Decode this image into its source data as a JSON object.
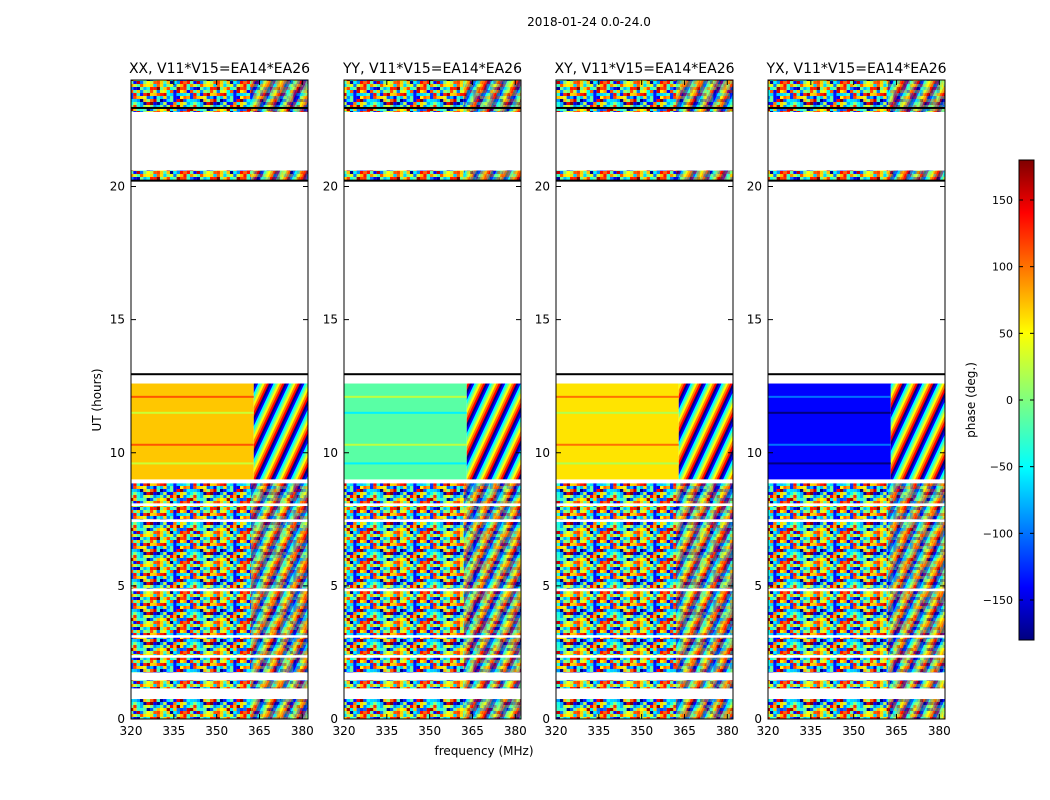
{
  "figure": {
    "suptitle": "2018-01-24 0.0-24.0",
    "shared_xlabel": "frequency (MHz)",
    "shared_ylabel": "UT (hours)"
  },
  "colorbar": {
    "label": "phase (deg.)",
    "range": [
      -180,
      180
    ],
    "ticks": [
      150,
      100,
      50,
      0,
      -50,
      -100,
      -150
    ],
    "tick_labels": [
      "150",
      "100",
      "50",
      "0",
      "−50",
      "−100",
      "−150"
    ],
    "colormap": [
      "#00007f",
      "#0000ff",
      "#00ffff",
      "#7fff7f",
      "#ffff00",
      "#ff7f00",
      "#ff0000",
      "#7f0000"
    ]
  },
  "chart_data": [
    {
      "type": "heatmap",
      "title": "XX, V11*V15=EA14*EA26",
      "xlabel": "",
      "ylabel": "UT (hours)",
      "xlim": [
        320,
        382
      ],
      "ylim": [
        0,
        24
      ],
      "x_ticks": [
        320,
        335,
        350,
        365,
        380
      ],
      "y_ticks": [
        0,
        5,
        10,
        15,
        20
      ],
      "z_label": "phase (deg.)",
      "coherent_block": {
        "hours": [
          9.0,
          12.6
        ],
        "freq_cut_MHz": 363,
        "phase_deg_low_band": 70,
        "phase_deg_high_band": "wrapping"
      }
    },
    {
      "type": "heatmap",
      "title": "YY, V11*V15=EA14*EA26",
      "xlabel": "frequency (MHz)",
      "ylabel": "",
      "xlim": [
        320,
        382
      ],
      "ylim": [
        0,
        24
      ],
      "x_ticks": [
        320,
        335,
        350,
        365,
        380
      ],
      "y_ticks": [
        0,
        5,
        10,
        15,
        20
      ],
      "z_label": "phase (deg.)",
      "coherent_block": {
        "hours": [
          9.0,
          12.6
        ],
        "freq_cut_MHz": 363,
        "phase_deg_low_band": -15,
        "phase_deg_high_band": "wrapping"
      }
    },
    {
      "type": "heatmap",
      "title": "XY, V11*V15=EA14*EA26",
      "xlabel": "",
      "ylabel": "",
      "xlim": [
        320,
        382
      ],
      "ylim": [
        0,
        24
      ],
      "x_ticks": [
        320,
        335,
        350,
        365,
        380
      ],
      "y_ticks": [
        0,
        5,
        10,
        15,
        20
      ],
      "z_label": "phase (deg.)",
      "coherent_block": {
        "hours": [
          9.0,
          12.6
        ],
        "freq_cut_MHz": 363,
        "phase_deg_low_band": 60,
        "phase_deg_high_band": "wrapping"
      }
    },
    {
      "type": "heatmap",
      "title": "YX, V11*V15=EA14*EA26",
      "xlabel": "",
      "ylabel": "",
      "xlim": [
        320,
        382
      ],
      "ylim": [
        0,
        24
      ],
      "x_ticks": [
        320,
        335,
        350,
        365,
        380
      ],
      "y_ticks": [
        0,
        5,
        10,
        15,
        20
      ],
      "z_label": "phase (deg.)",
      "coherent_block": {
        "hours": [
          9.0,
          12.6
        ],
        "freq_cut_MHz": 363,
        "phase_deg_low_band": -140,
        "phase_deg_high_band": "wrapping"
      }
    }
  ]
}
